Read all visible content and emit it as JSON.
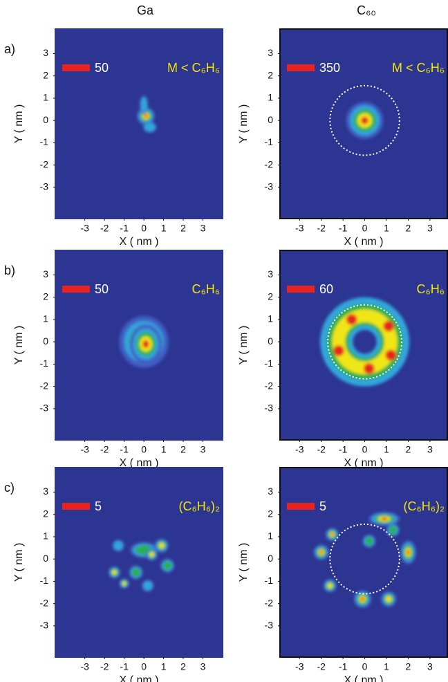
{
  "columns": [
    "Ga",
    "C₆₀"
  ],
  "rows": [
    "a)",
    "b)",
    "c)"
  ],
  "chart_data": [
    {
      "type": "heatmap",
      "xlabel": "X ( nm )",
      "ylabel": "Y ( nm )",
      "xlim": [
        -4.5,
        4
      ],
      "ylim": [
        -4.4,
        4.1
      ],
      "xticks": [
        -3,
        -2,
        -1,
        0,
        1,
        2,
        3
      ],
      "yticks": [
        -3,
        -2,
        -1,
        0,
        1,
        2,
        3
      ],
      "scale_label": "50",
      "annotation": "M < C₆H₆"
    },
    {
      "type": "heatmap",
      "xlabel": "X ( nm )",
      "ylabel": "Y ( nm )",
      "xlim": [
        -3.9,
        3.8
      ],
      "ylim": [
        -4.4,
        4.1
      ],
      "xticks": [
        -3,
        -2,
        -1,
        0,
        1,
        2,
        3
      ],
      "yticks": [
        -3,
        -2,
        -1,
        0,
        1,
        2,
        3
      ],
      "scale_label": "350",
      "annotation": "M < C₆H₆",
      "circle_radius": 1.6
    },
    {
      "type": "heatmap",
      "xlabel": "X ( nm )",
      "ylabel": "Y ( nm )",
      "xlim": [
        -4.5,
        4
      ],
      "ylim": [
        -4.4,
        4.1
      ],
      "xticks": [
        -3,
        -2,
        -1,
        0,
        1,
        2,
        3
      ],
      "yticks": [
        -3,
        -2,
        -1,
        0,
        1,
        2,
        3
      ],
      "scale_label": "50",
      "annotation": "C₆H₆"
    },
    {
      "type": "heatmap",
      "xlabel": "X ( nm )",
      "ylabel": "Y ( nm )",
      "xlim": [
        -3.9,
        3.8
      ],
      "ylim": [
        -4.4,
        4.1
      ],
      "xticks": [
        -3,
        -2,
        -1,
        0,
        1,
        2,
        3
      ],
      "yticks": [
        -3,
        -2,
        -1,
        0,
        1,
        2,
        3
      ],
      "scale_label": "60",
      "annotation": "C₆H₆",
      "circle_radius": 1.7
    },
    {
      "type": "heatmap",
      "xlabel": "X ( nm )",
      "ylabel": "Y ( nm )",
      "xlim": [
        -4.5,
        4
      ],
      "ylim": [
        -4.4,
        4.1
      ],
      "xticks": [
        -3,
        -2,
        -1,
        0,
        1,
        2,
        3
      ],
      "yticks": [
        -3,
        -2,
        -1,
        0,
        1,
        2,
        3
      ],
      "scale_label": "5",
      "annotation": "(C₆H₆)₂"
    },
    {
      "type": "heatmap",
      "xlabel": "X ( nm )",
      "ylabel": "Y ( nm )",
      "xlim": [
        -3.9,
        3.8
      ],
      "ylim": [
        -4.4,
        4.1
      ],
      "xticks": [
        -3,
        -2,
        -1,
        0,
        1,
        2,
        3
      ],
      "yticks": [
        -3,
        -2,
        -1,
        0,
        1,
        2,
        3
      ],
      "scale_label": "5",
      "annotation": "(C₆H₆)₂",
      "circle_radius": 1.6
    }
  ]
}
